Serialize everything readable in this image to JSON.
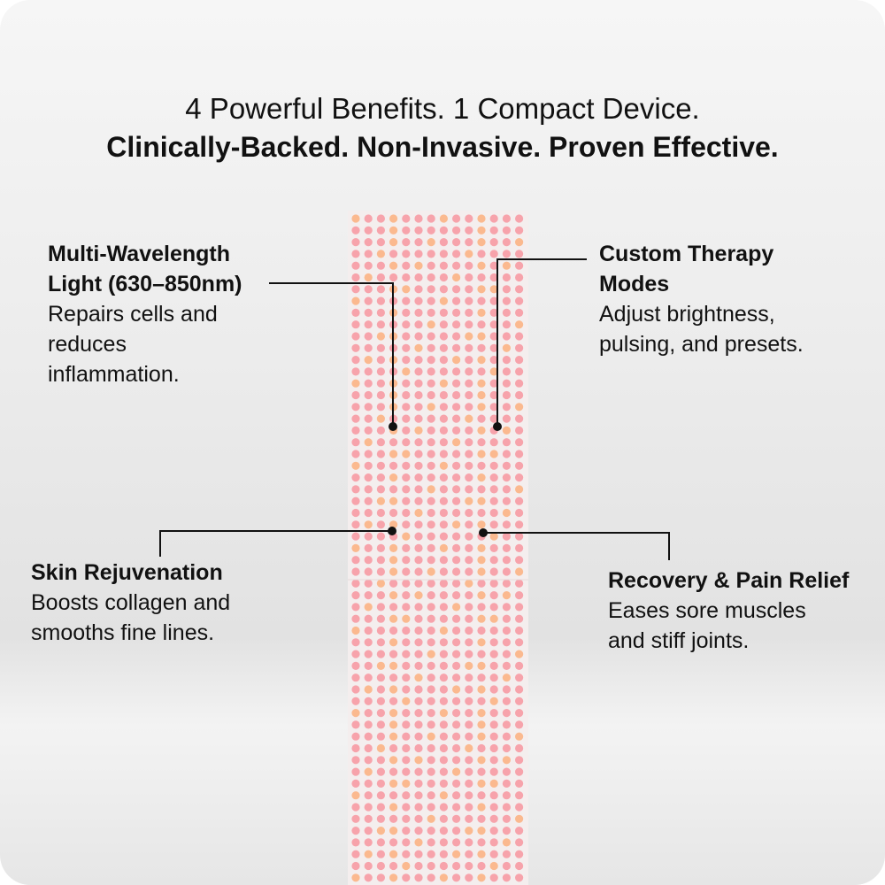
{
  "headline": {
    "line1": "4 Powerful Benefits. 1 Compact Device.",
    "line2": "Clinically-Backed. Non-Invasive. Proven Effective."
  },
  "features": [
    {
      "title_1": "Multi-Wavelength",
      "title_2": "Light (630–850nm)",
      "desc_1": "Repairs cells and",
      "desc_2": "reduces",
      "desc_3": "inflammation."
    },
    {
      "title_1": "Custom Therapy",
      "title_2": "Modes",
      "desc_1": "Adjust brightness,",
      "desc_2": "pulsing, and presets."
    },
    {
      "title": "Skin Rejuvenation",
      "desc_1": "Boosts collagen and",
      "desc_2": "smooths fine lines."
    },
    {
      "title": "Recovery & Pain Relief",
      "desc_1": "Eases sore muscles",
      "desc_2": "and stiff joints."
    }
  ],
  "colors": {
    "led_red": "#f7a3ab",
    "led_amber": "#fbb98f",
    "panel": "#f4eeee"
  }
}
